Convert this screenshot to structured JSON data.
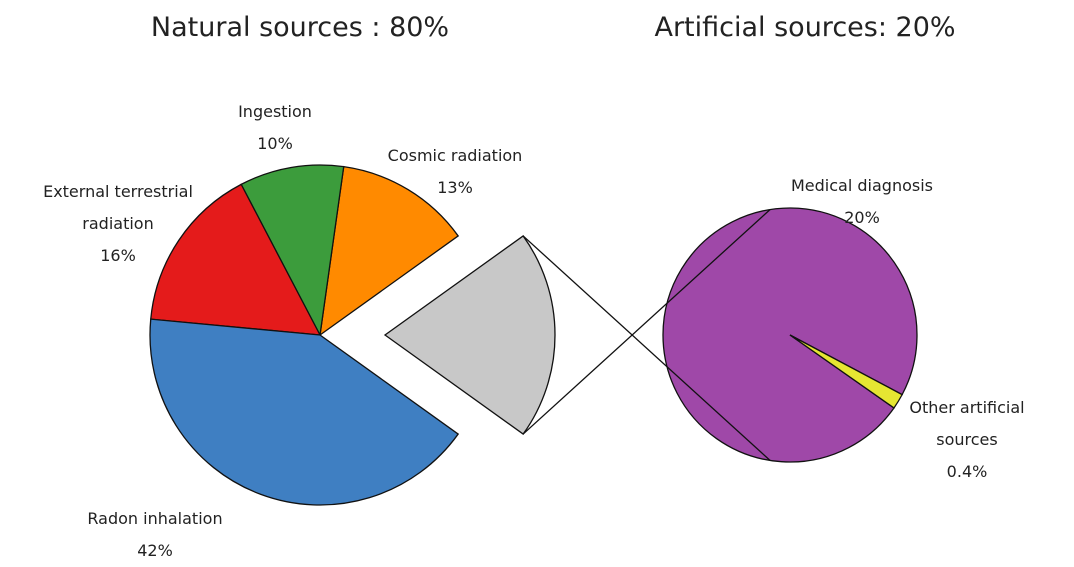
{
  "chart_data": [
    {
      "type": "pie",
      "title": "Natural sources : 80%",
      "categories": [
        "Cosmic radiation",
        "Ingestion",
        "External terrestrial radiation",
        "Radon inhalation",
        null
      ],
      "values": [
        13,
        10,
        16,
        42,
        20
      ],
      "value_labels": [
        "13%",
        "10%",
        "16%",
        "42%",
        null
      ],
      "colors": [
        "#ff8a00",
        "#3c9c3c",
        "#e41b1b",
        "#3f7fc2",
        "#c8c8c8"
      ]
    },
    {
      "type": "pie",
      "title": "Artificial sources: 20%",
      "categories": [
        "Medical diagnosis",
        "Other artificial sources"
      ],
      "values": [
        20,
        0.4
      ],
      "value_labels": [
        "20%",
        "0.4%"
      ],
      "colors": [
        "#9f48a8",
        "#e6e632"
      ]
    }
  ]
}
